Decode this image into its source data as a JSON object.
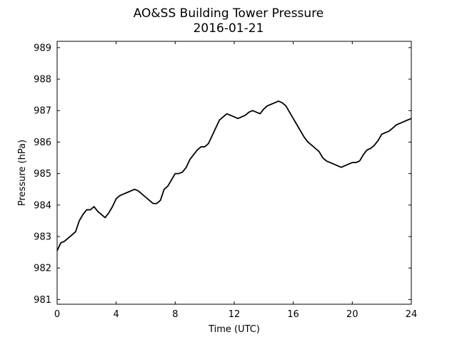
{
  "chart_data": {
    "type": "line",
    "title": "AO&SS Building Tower Pressure",
    "subtitle": "2016-01-21",
    "xlabel": "Time (UTC)",
    "ylabel": "Pressure (hPa)",
    "xlim": [
      0,
      24
    ],
    "ylim": [
      980.85,
      989.2
    ],
    "xticks": [
      0,
      4,
      8,
      12,
      16,
      20,
      24
    ],
    "yticks": [
      981,
      982,
      983,
      984,
      985,
      986,
      987,
      988,
      989
    ],
    "grid": false,
    "line_color": "#000000",
    "series": [
      {
        "x": [
          0,
          0.25,
          0.5,
          0.75,
          1.0,
          1.25,
          1.5,
          1.75,
          2.0,
          2.25,
          2.5,
          2.75,
          3.0,
          3.25,
          3.5,
          3.75,
          4.0,
          4.25,
          4.5,
          4.75,
          5.0,
          5.25,
          5.5,
          5.75,
          6.0,
          6.25,
          6.5,
          6.75,
          7.0,
          7.25,
          7.5,
          7.75,
          8.0,
          8.25,
          8.5,
          8.75,
          9.0,
          9.25,
          9.5,
          9.75,
          10.0,
          10.25,
          10.5,
          10.75,
          11.0,
          11.25,
          11.5,
          11.75,
          12.0,
          12.25,
          12.5,
          12.75,
          13.0,
          13.25,
          13.5,
          13.75,
          14.0,
          14.25,
          14.5,
          14.75,
          15.0,
          15.25,
          15.5,
          15.75,
          16.0,
          16.25,
          16.5,
          16.75,
          17.0,
          17.25,
          17.5,
          17.75,
          18.0,
          18.25,
          18.5,
          18.75,
          19.0,
          19.25,
          19.5,
          19.75,
          20.0,
          20.25,
          20.5,
          20.75,
          21.0,
          21.25,
          21.5,
          21.75,
          22.0,
          22.25,
          22.5,
          22.75,
          23.0,
          23.25,
          23.5,
          23.75,
          24.0
        ],
        "values": [
          982.55,
          982.8,
          982.85,
          982.95,
          983.05,
          983.15,
          983.5,
          983.7,
          983.85,
          983.85,
          983.95,
          983.8,
          983.7,
          983.6,
          983.75,
          983.95,
          984.2,
          984.3,
          984.35,
          984.4,
          984.45,
          984.5,
          984.45,
          984.35,
          984.25,
          984.15,
          984.05,
          984.05,
          984.15,
          984.5,
          984.6,
          984.8,
          985.0,
          985.0,
          985.05,
          985.2,
          985.45,
          985.6,
          985.75,
          985.85,
          985.85,
          985.95,
          986.2,
          986.45,
          986.7,
          986.8,
          986.9,
          986.85,
          986.8,
          986.75,
          986.8,
          986.85,
          986.95,
          987.0,
          986.95,
          986.9,
          987.05,
          987.15,
          987.2,
          987.25,
          987.3,
          987.25,
          987.15,
          986.95,
          986.75,
          986.55,
          986.35,
          986.15,
          986.0,
          985.9,
          985.8,
          985.7,
          985.5,
          985.4,
          985.35,
          985.3,
          985.25,
          985.2,
          985.25,
          985.3,
          985.35,
          985.35,
          985.4,
          985.6,
          985.75,
          985.8,
          985.9,
          986.05,
          986.25,
          986.3,
          986.35,
          986.45,
          986.55,
          986.6,
          986.65,
          986.7,
          986.75
        ]
      }
    ]
  }
}
